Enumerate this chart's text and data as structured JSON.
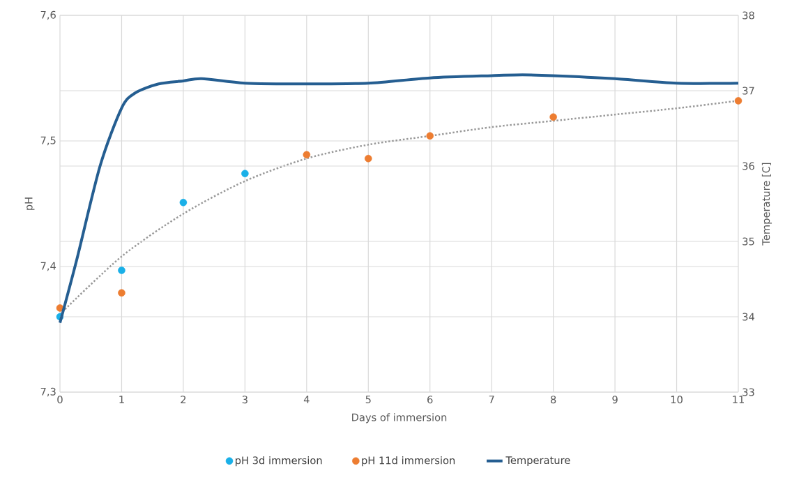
{
  "chart_data": {
    "type": "scatter",
    "xlabel": "Days of immersion",
    "ylabel": "pH",
    "y2label": "Temperature [C]",
    "xlim": [
      0,
      11
    ],
    "xticks": [
      0,
      1,
      2,
      3,
      4,
      5,
      6,
      7,
      8,
      9,
      10,
      11
    ],
    "ylim": [
      7.3,
      7.6
    ],
    "yticks": [
      {
        "value": 7.3,
        "label": "7,3"
      },
      {
        "value": 7.4,
        "label": "7,4"
      },
      {
        "value": 7.5,
        "label": "7,5"
      },
      {
        "value": 7.6,
        "label": "7,6"
      }
    ],
    "y2lim": [
      33,
      38
    ],
    "y2ticks": [
      33,
      34,
      35,
      36,
      37,
      38
    ],
    "grid": true,
    "legend": "bottom",
    "series": [
      {
        "name": "pH 3d immersion",
        "marker": "circle",
        "color": "#1ab0e8",
        "x": [
          0,
          1,
          2,
          3
        ],
        "values": [
          7.36,
          7.397,
          7.451,
          7.474
        ]
      },
      {
        "name": "pH 11d immersion",
        "marker": "circle",
        "color": "#ed7d31",
        "x": [
          0,
          1,
          4,
          5,
          6,
          8,
          11
        ],
        "values": [
          7.367,
          7.379,
          7.489,
          7.486,
          7.504,
          7.519,
          7.532
        ]
      },
      {
        "type": "line",
        "marker": "none",
        "line_style": "dotted",
        "color": "#999999",
        "x": [
          0,
          1,
          2,
          3,
          4,
          5,
          6,
          7,
          8,
          9,
          10,
          11
        ],
        "values": [
          7.362,
          7.408,
          7.442,
          7.468,
          7.486,
          7.497,
          7.504,
          7.511,
          7.516,
          7.521,
          7.526,
          7.532
        ]
      },
      {
        "name": "Temperature",
        "type": "line",
        "axis": "y2",
        "marker": "none",
        "line_style": "solid",
        "color": "#255e91",
        "x": [
          0,
          0.27,
          0.65,
          1,
          1.22,
          1.6,
          2,
          2.3,
          3,
          4,
          5,
          6,
          7,
          7.5,
          8,
          9,
          10,
          11
        ],
        "values": [
          33.92,
          34.75,
          36.0,
          36.77,
          36.97,
          37.09,
          37.13,
          37.16,
          37.1,
          37.09,
          37.1,
          37.17,
          37.2,
          37.21,
          37.2,
          37.16,
          37.1,
          37.1
        ]
      }
    ]
  }
}
